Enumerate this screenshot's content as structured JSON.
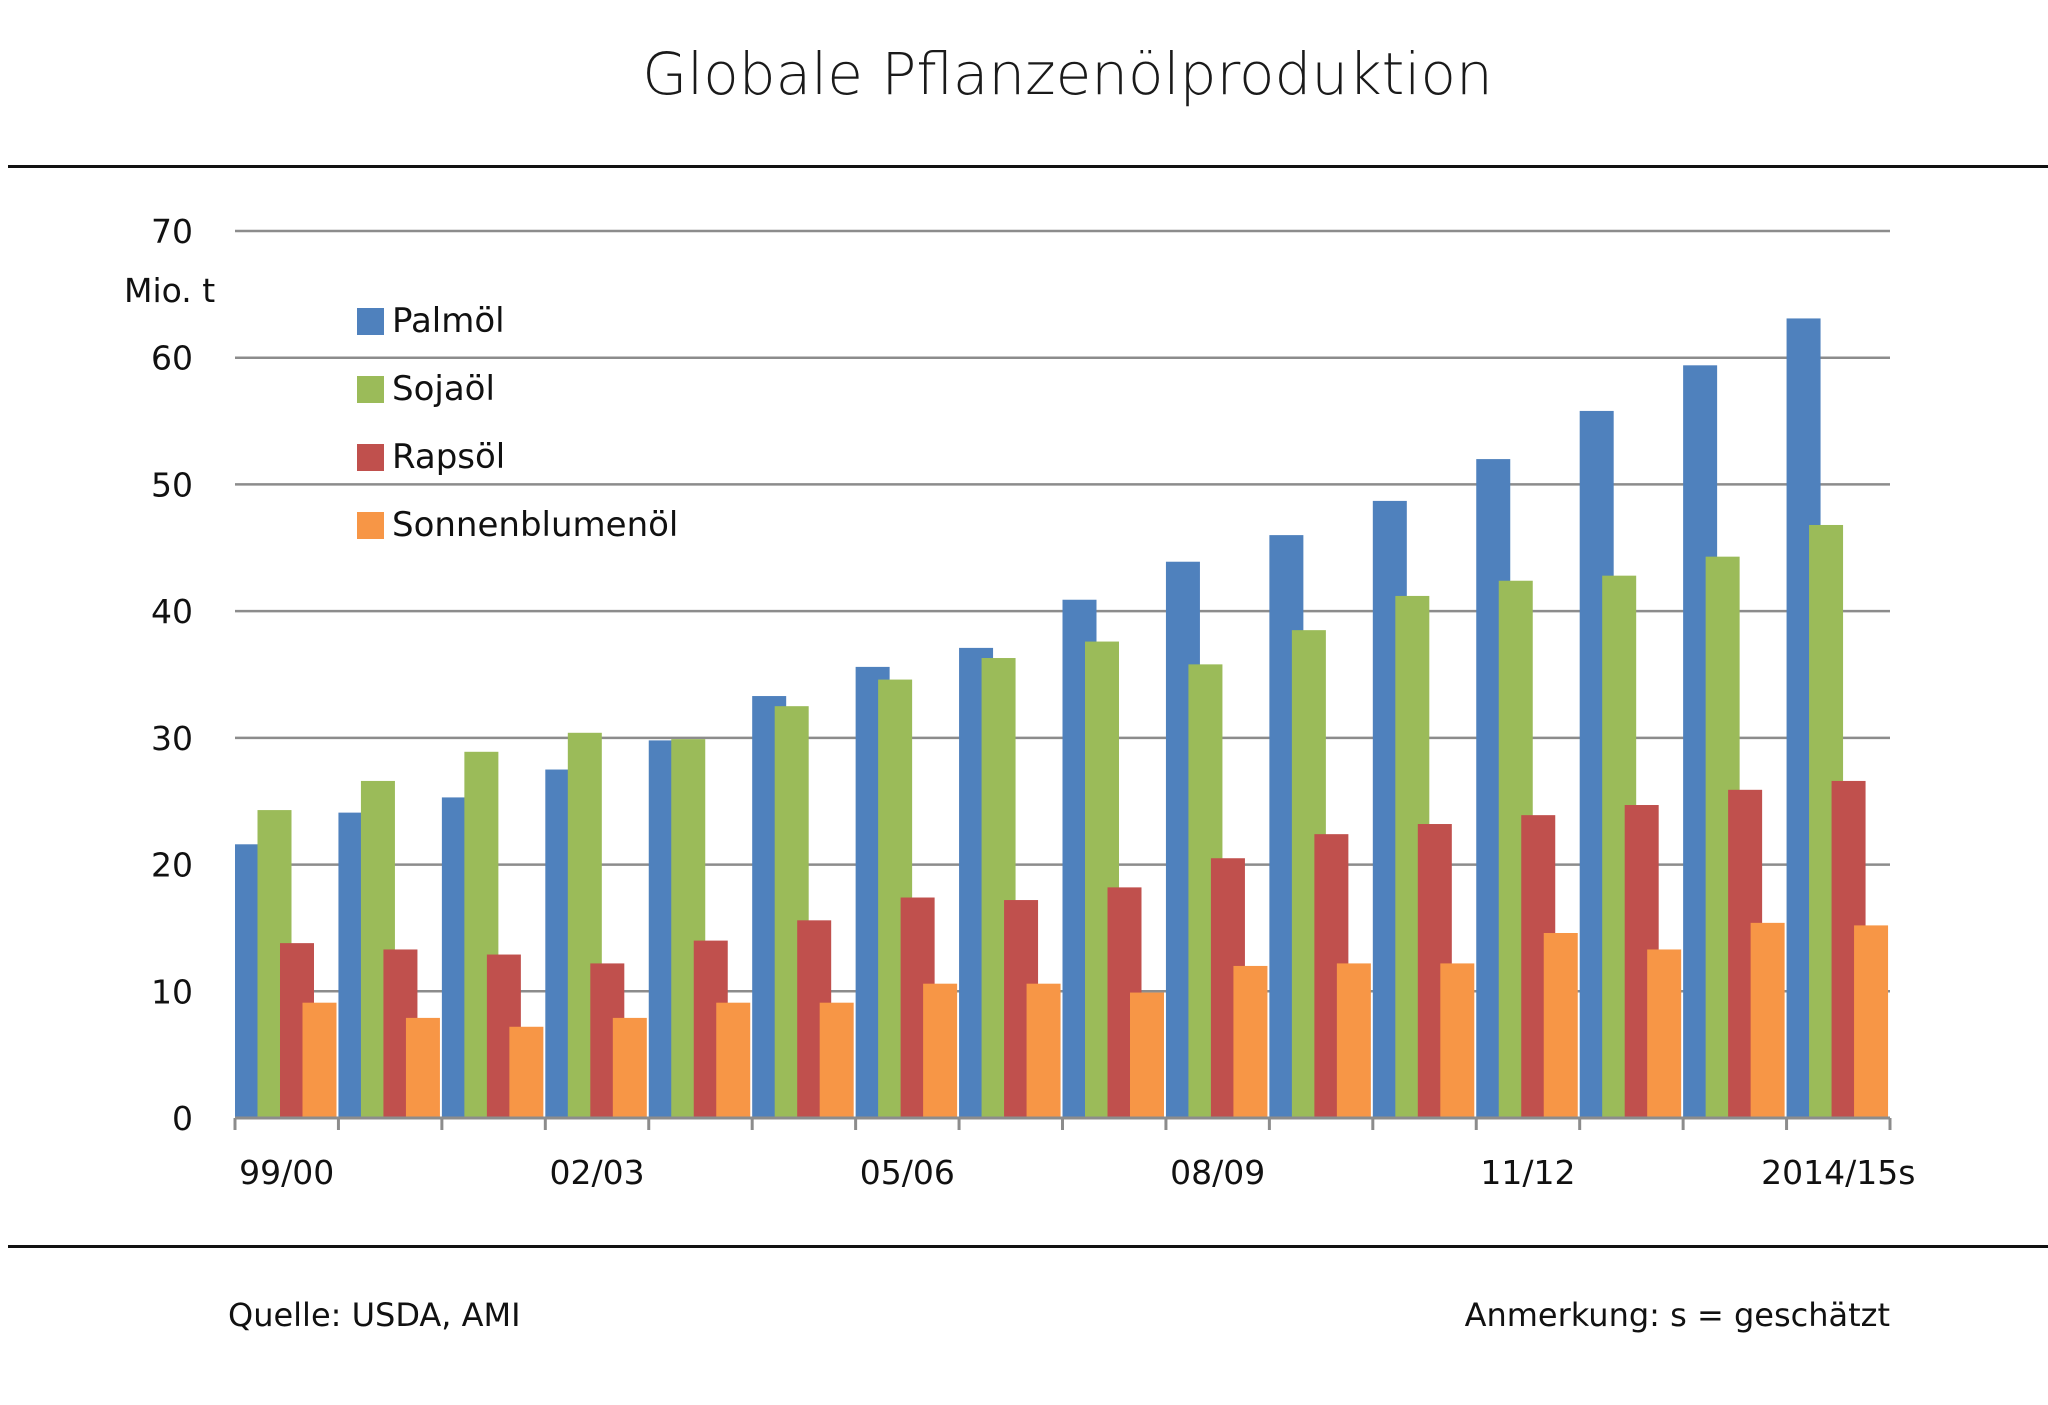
{
  "chart_data": {
    "type": "bar",
    "title": "Globale Pflanzenölproduktion",
    "ylabel": "Mio. t",
    "xlabel": "",
    "ylim": [
      0,
      70
    ],
    "yticks": [
      "0",
      "10",
      "20",
      "30",
      "40",
      "50",
      "60",
      "70"
    ],
    "tick_labels": [
      {
        "index": 0,
        "label": "99/00"
      },
      {
        "index": 3,
        "label": "02/03"
      },
      {
        "index": 6,
        "label": "05/06"
      },
      {
        "index": 9,
        "label": "08/09"
      },
      {
        "index": 12,
        "label": "11/12"
      },
      {
        "index": 15,
        "label": "2014/15s"
      }
    ],
    "grid": true,
    "legend_position": "top-left",
    "series": [
      {
        "name": "Palmöl",
        "color": "#4f81bd",
        "values": [
          21.6,
          24.1,
          25.3,
          27.5,
          29.8,
          33.3,
          35.6,
          37.1,
          40.9,
          43.9,
          46.0,
          48.7,
          52.0,
          55.8,
          59.4,
          63.1
        ]
      },
      {
        "name": "Sojaöl",
        "color": "#9bbb59",
        "values": [
          24.3,
          26.6,
          28.9,
          30.4,
          29.9,
          32.5,
          34.6,
          36.3,
          37.6,
          35.8,
          38.5,
          41.2,
          42.4,
          42.8,
          44.3,
          46.8
        ]
      },
      {
        "name": "Rapsöl",
        "color": "#c0504d",
        "values": [
          13.8,
          13.3,
          12.9,
          12.2,
          14.0,
          15.6,
          17.4,
          17.2,
          18.2,
          20.5,
          22.4,
          23.2,
          23.9,
          24.7,
          25.9,
          26.6
        ]
      },
      {
        "name": "Sonnenblumenöl",
        "color": "#f79646",
        "values": [
          9.1,
          7.9,
          7.2,
          7.9,
          9.1,
          9.1,
          10.6,
          10.6,
          9.9,
          12.0,
          12.2,
          12.2,
          14.6,
          13.3,
          15.4,
          15.2
        ]
      }
    ]
  },
  "footer": {
    "source": "Quelle: USDA, AMI",
    "note": "Anmerkung: s = geschätzt"
  }
}
